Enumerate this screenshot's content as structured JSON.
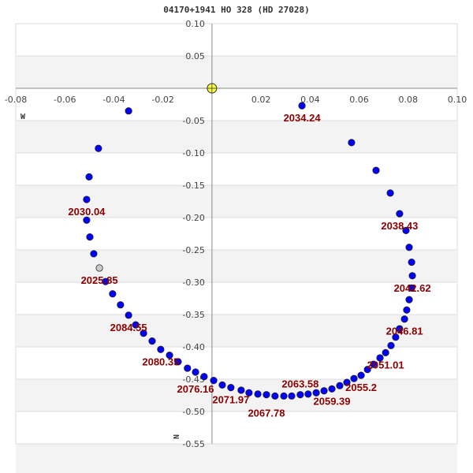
{
  "title": "04170+1941 HO  328 (HD 27028)",
  "chart_data": {
    "type": "scatter",
    "title": "04170+1941 HO  328 (HD 27028)",
    "xlim": [
      -0.08,
      0.1
    ],
    "ylim": [
      -0.55,
      0.1
    ],
    "x_ticks": [
      "-0.08",
      "-0.06",
      "-0.04",
      "-0.02",
      "0.02",
      "0.04",
      "0.06",
      "0.08",
      "0.10"
    ],
    "x_tick_values": [
      -0.08,
      -0.06,
      -0.04,
      -0.02,
      0.02,
      0.04,
      0.06,
      0.08,
      0.1
    ],
    "y_ticks": [
      "0.10",
      "0.05",
      "-0.05",
      "-0.10",
      "-0.15",
      "-0.20",
      "-0.25",
      "-0.30",
      "-0.35",
      "-0.40",
      "-0.45",
      "-0.50",
      "-0.55"
    ],
    "y_tick_values": [
      0.1,
      0.05,
      -0.05,
      -0.1,
      -0.15,
      -0.2,
      -0.25,
      -0.3,
      -0.35,
      -0.4,
      -0.45,
      -0.5,
      -0.55
    ],
    "grid": true,
    "direction_labels": {
      "west": "W",
      "north": "N"
    },
    "primary_star": {
      "x": 0,
      "y": 0,
      "color": "#ffff44"
    },
    "colors": {
      "point": "#0000ff",
      "current_point": "#cccccc",
      "label": "#8b0000",
      "band": "#f3f3f3"
    },
    "current_index": 0,
    "points": [
      [
        -0.0459,
        -0.278
      ],
      [
        -0.0482,
        -0.256
      ],
      [
        -0.0498,
        -0.23
      ],
      [
        -0.0511,
        -0.204
      ],
      [
        -0.0511,
        -0.172
      ],
      [
        -0.0501,
        -0.137
      ],
      [
        -0.0463,
        -0.093
      ],
      [
        -0.034,
        -0.035
      ],
      [
        0.0367,
        -0.027
      ],
      [
        0.0569,
        -0.084
      ],
      [
        0.0669,
        -0.127
      ],
      [
        0.0727,
        -0.162
      ],
      [
        0.0765,
        -0.194
      ],
      [
        0.0791,
        -0.22
      ],
      [
        0.0804,
        -0.246
      ],
      [
        0.0814,
        -0.269
      ],
      [
        0.0817,
        -0.29
      ],
      [
        0.0814,
        -0.309
      ],
      [
        0.0804,
        -0.327
      ],
      [
        0.0794,
        -0.343
      ],
      [
        0.0785,
        -0.357
      ],
      [
        0.0765,
        -0.372
      ],
      [
        0.0749,
        -0.385
      ],
      [
        0.073,
        -0.398
      ],
      [
        0.0708,
        -0.409
      ],
      [
        0.0685,
        -0.417
      ],
      [
        0.0659,
        -0.427
      ],
      [
        0.0634,
        -0.435
      ],
      [
        0.0608,
        -0.444
      ],
      [
        0.0579,
        -0.449
      ],
      [
        0.055,
        -0.455
      ],
      [
        0.0521,
        -0.46
      ],
      [
        0.0489,
        -0.465
      ],
      [
        0.0457,
        -0.468
      ],
      [
        0.0425,
        -0.471
      ],
      [
        0.0392,
        -0.473
      ],
      [
        0.036,
        -0.474
      ],
      [
        0.0325,
        -0.476
      ],
      [
        0.0293,
        -0.476
      ],
      [
        0.0257,
        -0.476
      ],
      [
        0.0222,
        -0.474
      ],
      [
        0.0187,
        -0.473
      ],
      [
        0.0151,
        -0.471
      ],
      [
        0.0119,
        -0.467
      ],
      [
        0.0077,
        -0.463
      ],
      [
        0.0042,
        -0.459
      ],
      [
        0.0007,
        -0.452
      ],
      [
        -0.0032,
        -0.446
      ],
      [
        -0.0067,
        -0.439
      ],
      [
        -0.01,
        -0.433
      ],
      [
        -0.0138,
        -0.423
      ],
      [
        -0.0173,
        -0.413
      ],
      [
        -0.0209,
        -0.404
      ],
      [
        -0.0244,
        -0.391
      ],
      [
        -0.0279,
        -0.379
      ],
      [
        -0.0311,
        -0.366
      ],
      [
        -0.034,
        -0.351
      ],
      [
        -0.0373,
        -0.335
      ],
      [
        -0.0405,
        -0.318
      ],
      [
        -0.0434,
        -0.299
      ]
    ],
    "epoch_labels": [
      {
        "index": 0,
        "text": "2025.85"
      },
      {
        "index": 4,
        "text": "2030.04"
      },
      {
        "index": 8,
        "text": "2034.24"
      },
      {
        "index": 12,
        "text": "2038.43"
      },
      {
        "index": 16,
        "text": "2042.62"
      },
      {
        "index": 20,
        "text": "2046.81"
      },
      {
        "index": 24,
        "text": "2051.01"
      },
      {
        "index": 28,
        "text": "2055.2"
      },
      {
        "index": 32,
        "text": "2059.39"
      },
      {
        "index": 36,
        "text": "2063.58"
      },
      {
        "index": 40,
        "text": "2067.78"
      },
      {
        "index": 44,
        "text": "2071.97"
      },
      {
        "index": 48,
        "text": "2076.16"
      },
      {
        "index": 52,
        "text": "2080.35"
      },
      {
        "index": 56,
        "text": "2084.55"
      }
    ]
  }
}
